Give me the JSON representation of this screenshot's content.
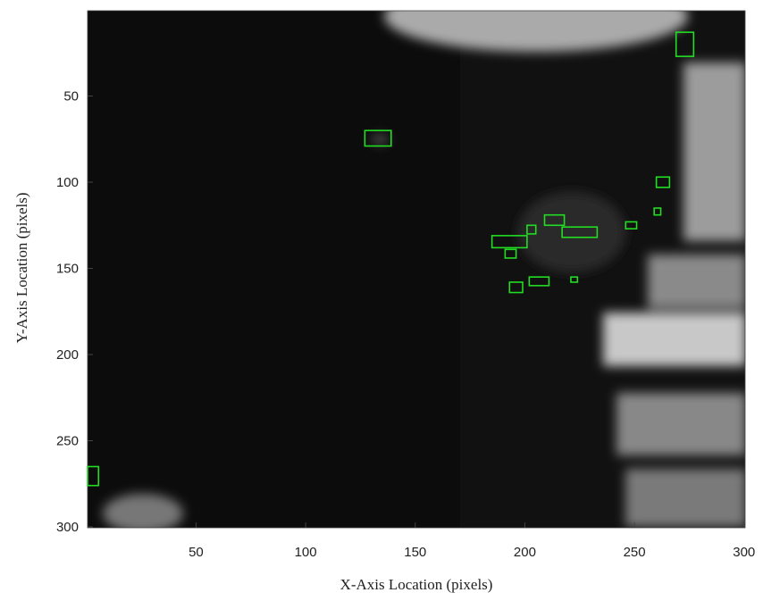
{
  "chart_data": {
    "type": "image",
    "x_label": "X-Axis Location (pixels)",
    "y_label": "Y-Axis Location (pixels)",
    "xlim": [
      0.5,
      300.5
    ],
    "ylim": [
      0.5,
      300.5
    ],
    "y_reversed": true,
    "xticks": [
      50,
      100,
      150,
      200,
      250,
      300
    ],
    "yticks": [
      50,
      100,
      150,
      200,
      250,
      300
    ],
    "box_color": "#22dd22",
    "boxes": {
      "x": [
        269,
        127,
        260,
        259,
        246,
        209,
        217,
        201,
        185,
        191,
        202,
        221,
        193,
        0.5
      ],
      "y": [
        13,
        70,
        97,
        115,
        123,
        119,
        126,
        125,
        131,
        139,
        155,
        155,
        158,
        265
      ],
      "width": [
        8,
        12,
        6,
        3,
        5,
        9,
        16,
        4,
        16,
        5,
        9,
        3,
        6,
        5
      ],
      "height": [
        14,
        9,
        6,
        4,
        4,
        6,
        6,
        5,
        7,
        5,
        5,
        3,
        6,
        11
      ]
    }
  }
}
